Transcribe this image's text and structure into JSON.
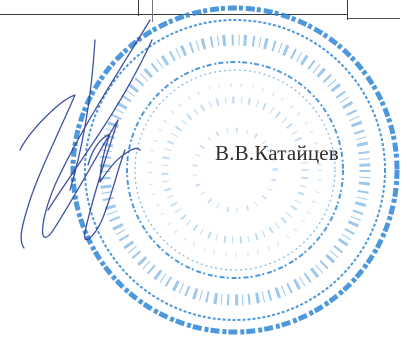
{
  "signature_block": {
    "signer_name": "В.В.Катайцев"
  },
  "colors": {
    "stamp_ink": "#2f86d6",
    "signature_ink": "#2a3f9a",
    "text": "#2e2e2e",
    "table_lines": "#3a3a3a"
  },
  "decorations": {
    "stamp": "round-official-seal",
    "signature": "handwritten-signature"
  }
}
